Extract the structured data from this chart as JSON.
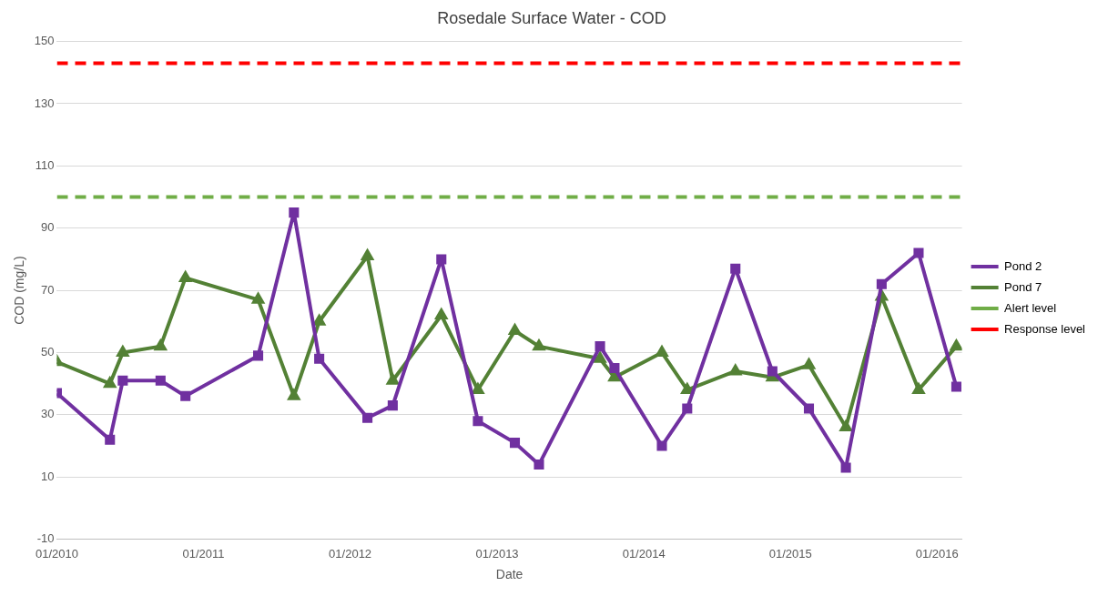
{
  "chart_data": {
    "type": "line",
    "title": "Rosedale Surface Water - COD",
    "xlabel": "Date",
    "ylabel": "COD (mg/L)",
    "x": [
      "2010-01-01",
      "2010-05-13",
      "2010-06-14",
      "2010-09-16",
      "2010-11-17",
      "2011-05-17",
      "2011-08-14",
      "2011-10-16",
      "2012-02-13",
      "2012-04-16",
      "2012-08-15",
      "2012-11-14",
      "2013-02-14",
      "2013-04-15",
      "2013-09-14",
      "2013-10-20",
      "2014-02-15",
      "2014-04-19",
      "2014-08-17",
      "2014-11-17",
      "2015-02-16",
      "2015-05-19",
      "2015-08-16",
      "2015-11-16",
      "2016-02-18"
    ],
    "series": [
      {
        "name": "Pond 2",
        "color": "#7030a0",
        "marker": "square",
        "values": [
          37,
          22,
          41,
          41,
          36,
          49,
          95,
          48,
          29,
          33,
          80,
          28,
          21,
          14,
          52,
          45,
          20,
          32,
          77,
          44,
          32,
          13,
          72,
          82,
          39
        ]
      },
      {
        "name": "Pond 7",
        "color": "#538135",
        "marker": "triangle",
        "values": [
          47,
          40,
          50,
          52,
          74,
          67,
          36,
          60,
          81,
          41,
          62,
          38,
          57,
          52,
          48,
          42,
          50,
          38,
          44,
          42,
          46,
          26,
          68,
          38,
          52
        ]
      }
    ],
    "ref_lines": [
      {
        "axis": "y",
        "value": 100,
        "label": "Alert level",
        "color": "#70ad47",
        "line_style": "dashed"
      },
      {
        "axis": "y",
        "value": 143,
        "label": "Response level",
        "color": "#ff0000",
        "line_style": "dashed"
      }
    ],
    "xlim": [
      "2010-01-01",
      "2016-03-03"
    ],
    "xticks": [
      {
        "value": "2010-01-01",
        "label": "01/2010"
      },
      {
        "value": "2011-01-01",
        "label": "01/2011"
      },
      {
        "value": "2012-01-01",
        "label": "01/2012"
      },
      {
        "value": "2013-01-01",
        "label": "01/2013"
      },
      {
        "value": "2014-01-01",
        "label": "01/2014"
      },
      {
        "value": "2015-01-01",
        "label": "01/2015"
      },
      {
        "value": "2016-01-01",
        "label": "01/2016"
      }
    ],
    "ylim": [
      -10,
      150
    ],
    "yticks": [
      -10,
      10,
      30,
      50,
      70,
      90,
      110,
      130,
      150
    ],
    "grid": "y",
    "legend": "right",
    "line_style": "solid"
  }
}
